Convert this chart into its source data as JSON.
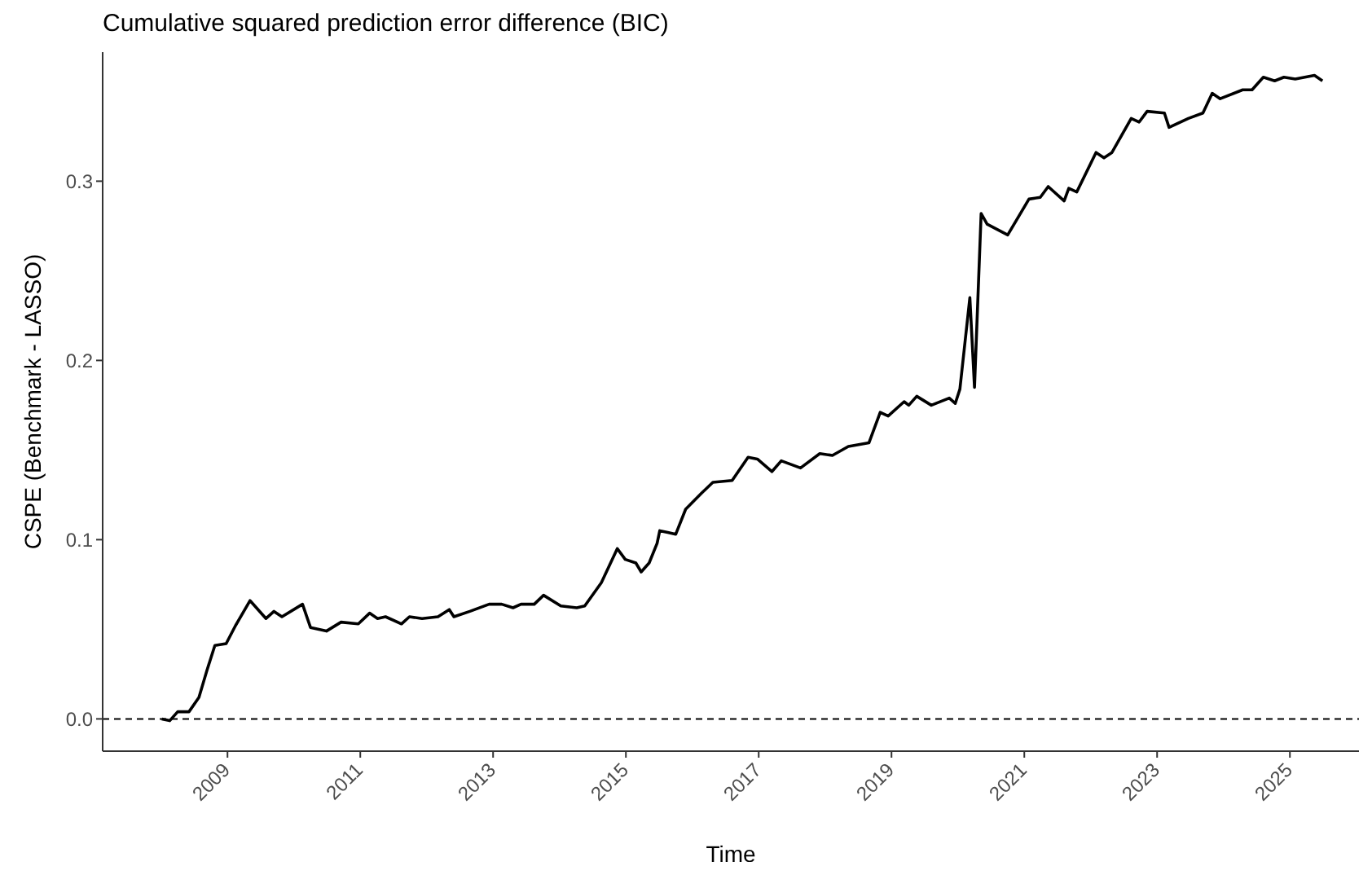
{
  "chart_data": {
    "type": "line",
    "title": "Cumulative squared prediction error difference (BIC)",
    "xlabel": "Time",
    "ylabel": "CSPE (Benchmark - LASSO)",
    "x": [
      2008.01,
      2008.13,
      2008.25,
      2008.42,
      2008.57,
      2008.69,
      2008.81,
      2008.98,
      2009.12,
      2009.34,
      2009.58,
      2009.7,
      2009.82,
      2010.13,
      2010.25,
      2010.49,
      2010.71,
      2010.97,
      2011.14,
      2011.26,
      2011.38,
      2011.62,
      2011.74,
      2011.93,
      2012.17,
      2012.34,
      2012.41,
      2012.65,
      2012.94,
      2013.13,
      2013.3,
      2013.42,
      2013.62,
      2013.76,
      2014.02,
      2014.26,
      2014.38,
      2014.63,
      2014.87,
      2014.99,
      2015.15,
      2015.23,
      2015.35,
      2015.47,
      2015.51,
      2015.63,
      2015.75,
      2015.9,
      2016.14,
      2016.31,
      2016.6,
      2016.84,
      2016.98,
      2017.2,
      2017.34,
      2017.63,
      2017.92,
      2018.11,
      2018.35,
      2018.66,
      2018.83,
      2018.95,
      2019.19,
      2019.26,
      2019.38,
      2019.6,
      2019.87,
      2019.96,
      2020.03,
      2020.18,
      2020.25,
      2020.35,
      2020.44,
      2020.75,
      2021.07,
      2021.24,
      2021.36,
      2021.6,
      2021.67,
      2021.79,
      2022.08,
      2022.2,
      2022.32,
      2022.61,
      2022.73,
      2022.85,
      2023.11,
      2023.18,
      2023.47,
      2023.69,
      2023.83,
      2023.95,
      2024.29,
      2024.43,
      2024.6,
      2024.77,
      2024.91,
      2025.08,
      2025.37,
      2025.49
    ],
    "series": [
      {
        "color": "#000000",
        "values": [
          0,
          -0.001,
          0.004,
          0.004,
          0.012,
          0.027,
          0.041,
          0.042,
          0.052,
          0.066,
          0.056,
          0.06,
          0.057,
          0.064,
          0.051,
          0.049,
          0.054,
          0.053,
          0.059,
          0.056,
          0.057,
          0.053,
          0.057,
          0.056,
          0.057,
          0.061,
          0.057,
          0.06,
          0.064,
          0.064,
          0.062,
          0.064,
          0.064,
          0.069,
          0.063,
          0.062,
          0.063,
          0.076,
          0.095,
          0.089,
          0.087,
          0.082,
          0.087,
          0.098,
          0.105,
          0.104,
          0.103,
          0.117,
          0.126,
          0.132,
          0.133,
          0.146,
          0.145,
          0.138,
          0.144,
          0.14,
          0.148,
          0.147,
          0.152,
          0.154,
          0.171,
          0.169,
          0.177,
          0.175,
          0.18,
          0.175,
          0.179,
          0.176,
          0.184,
          0.235,
          0.185,
          0.282,
          0.276,
          0.27,
          0.29,
          0.291,
          0.297,
          0.289,
          0.296,
          0.294,
          0.316,
          0.313,
          0.316,
          0.335,
          0.333,
          0.339,
          0.338,
          0.33,
          0.335,
          0.338,
          0.349,
          0.346,
          0.351,
          0.351,
          0.358,
          0.356,
          0.358,
          0.357,
          0.359,
          0.356
        ]
      }
    ],
    "xlim": [
      2007.12,
      2026.04
    ],
    "xticks": [
      2009,
      2011,
      2013,
      2015,
      2017,
      2019,
      2021,
      2023,
      2025
    ],
    "ylim": [
      -0.018,
      0.372
    ],
    "yticks": [
      {
        "value": 0,
        "label": "0.0"
      },
      {
        "value": 0.1,
        "label": "0.1"
      },
      {
        "value": 0.2,
        "label": "0.2"
      },
      {
        "value": 0.3,
        "label": "0.3"
      }
    ],
    "ref_lines": [
      {
        "axis": "y",
        "value": 0,
        "label": null,
        "color": "#000000",
        "line_style": "dashed"
      }
    ],
    "grid": false,
    "legend": false,
    "marker": "none",
    "line_style": "solid"
  }
}
